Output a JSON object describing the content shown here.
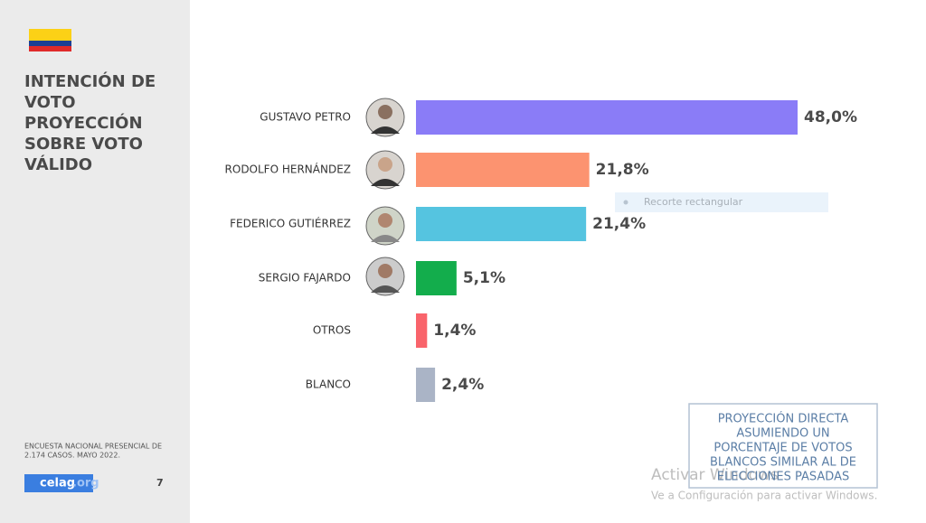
{
  "chart_data": {
    "type": "bar",
    "orientation": "horizontal",
    "title": [
      "INTENCIÓN DE",
      "VOTO",
      "PROYECCIÓN",
      "SOBRE VOTO",
      "VÁLIDO"
    ],
    "categories": [
      "GUSTAVO PETRO",
      "RODOLFO HERNÁNDEZ",
      "FEDERICO GUTIÉRREZ",
      "SERGIO FAJARDO",
      "OTROS",
      "BLANCO"
    ],
    "values": [
      48.0,
      21.8,
      21.4,
      5.1,
      1.4,
      2.4
    ],
    "value_labels": [
      "48,0%",
      "21,8%",
      "21,4%",
      "5,1%",
      "1,4%",
      "2,4%"
    ],
    "colors": [
      "#8a7cf7",
      "#fc9370",
      "#55c4e0",
      "#13ad4c",
      "#f9646b",
      "#aab4c6"
    ]
  },
  "sidebar": {
    "source": [
      "ENCUESTA NACIONAL PRESENCIAL DE",
      "2.174 CASOS. MAYO 2022."
    ],
    "logo": "celag",
    "logo_suffix": ".org",
    "page_number": "7"
  },
  "note": [
    "PROYECCIÓN DIRECTA",
    "ASUMIENDO UN",
    "PORCENTAJE DE VOTOS",
    "BLANCOS SIMILAR AL DE",
    "ELECCIONES PASADAS"
  ],
  "overlay": {
    "snip_label": "Recorte rectangular",
    "watermark_title": "Activar Windows",
    "watermark_text": "Ve a Configuración para activar Windows."
  }
}
